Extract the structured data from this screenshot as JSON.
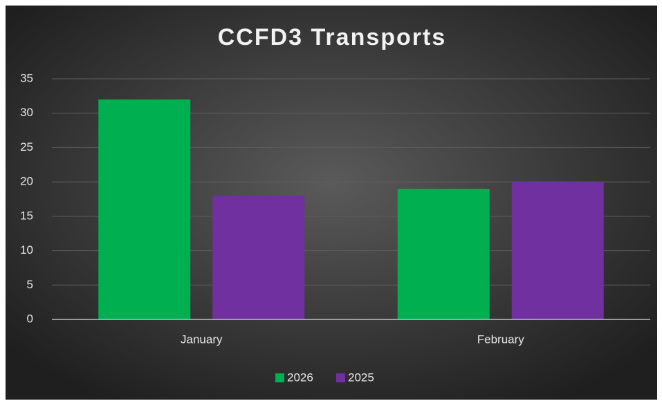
{
  "chart_data": {
    "type": "bar",
    "title": "CCFD3 Transports",
    "categories": [
      "January",
      "February"
    ],
    "series": [
      {
        "name": "2026",
        "color": "#00b050",
        "values": [
          32,
          19
        ]
      },
      {
        "name": "2025",
        "color": "#7030a0",
        "values": [
          18,
          20
        ]
      }
    ],
    "ylim": [
      0,
      35
    ],
    "yticks": [
      0,
      5,
      10,
      15,
      20,
      25,
      30,
      35
    ],
    "grid": true,
    "legend": "bottom"
  }
}
